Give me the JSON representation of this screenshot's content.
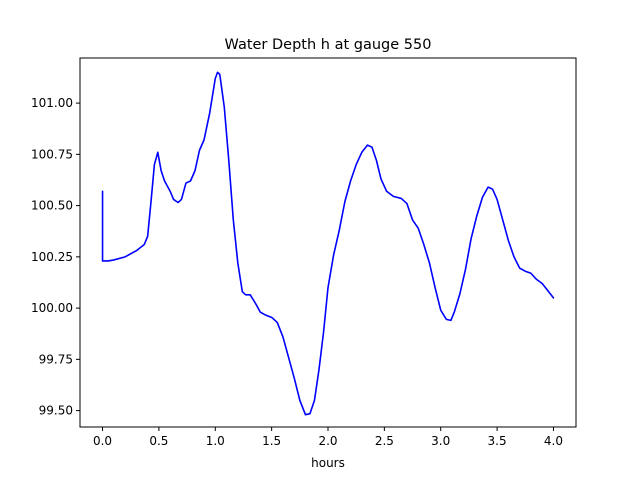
{
  "chart_data": {
    "type": "line",
    "title": "Water Depth h at gauge 550",
    "xlabel": "hours",
    "ylabel": "",
    "xlim": [
      -0.2,
      4.2
    ],
    "ylim": [
      99.42,
      101.22
    ],
    "xticks": [
      0.0,
      0.5,
      1.0,
      1.5,
      2.0,
      2.5,
      3.0,
      3.5,
      4.0
    ],
    "xtick_labels": [
      "0.0",
      "0.5",
      "1.0",
      "1.5",
      "2.0",
      "2.5",
      "3.0",
      "3.5",
      "4.0"
    ],
    "yticks": [
      99.5,
      99.75,
      100.0,
      100.25,
      100.5,
      100.75,
      101.0
    ],
    "ytick_labels": [
      "99.50",
      "99.75",
      "100.00",
      "100.25",
      "100.50",
      "100.75",
      "101.00"
    ],
    "grid": false,
    "series": [
      {
        "color": "#0000ff",
        "points": [
          [
            0.0,
            100.57
          ],
          [
            0.0,
            100.23
          ],
          [
            0.05,
            100.23
          ],
          [
            0.1,
            100.235
          ],
          [
            0.2,
            100.25
          ],
          [
            0.3,
            100.28
          ],
          [
            0.37,
            100.31
          ],
          [
            0.4,
            100.35
          ],
          [
            0.43,
            100.52
          ],
          [
            0.46,
            100.7
          ],
          [
            0.49,
            100.76
          ],
          [
            0.52,
            100.67
          ],
          [
            0.55,
            100.62
          ],
          [
            0.6,
            100.57
          ],
          [
            0.63,
            100.53
          ],
          [
            0.67,
            100.515
          ],
          [
            0.7,
            100.53
          ],
          [
            0.74,
            100.61
          ],
          [
            0.78,
            100.62
          ],
          [
            0.82,
            100.67
          ],
          [
            0.86,
            100.77
          ],
          [
            0.9,
            100.82
          ],
          [
            0.95,
            100.95
          ],
          [
            1.0,
            101.12
          ],
          [
            1.02,
            101.15
          ],
          [
            1.04,
            101.14
          ],
          [
            1.08,
            100.98
          ],
          [
            1.12,
            100.72
          ],
          [
            1.16,
            100.43
          ],
          [
            1.2,
            100.22
          ],
          [
            1.24,
            100.08
          ],
          [
            1.27,
            100.065
          ],
          [
            1.31,
            100.065
          ],
          [
            1.36,
            100.02
          ],
          [
            1.4,
            99.98
          ],
          [
            1.45,
            99.965
          ],
          [
            1.5,
            99.955
          ],
          [
            1.55,
            99.93
          ],
          [
            1.6,
            99.86
          ],
          [
            1.65,
            99.76
          ],
          [
            1.7,
            99.66
          ],
          [
            1.75,
            99.55
          ],
          [
            1.8,
            99.48
          ],
          [
            1.84,
            99.485
          ],
          [
            1.88,
            99.55
          ],
          [
            1.92,
            99.7
          ],
          [
            1.96,
            99.88
          ],
          [
            2.0,
            100.1
          ],
          [
            2.05,
            100.26
          ],
          [
            2.1,
            100.38
          ],
          [
            2.15,
            100.52
          ],
          [
            2.2,
            100.62
          ],
          [
            2.25,
            100.7
          ],
          [
            2.3,
            100.76
          ],
          [
            2.35,
            100.795
          ],
          [
            2.39,
            100.785
          ],
          [
            2.43,
            100.72
          ],
          [
            2.47,
            100.63
          ],
          [
            2.52,
            100.57
          ],
          [
            2.58,
            100.545
          ],
          [
            2.65,
            100.535
          ],
          [
            2.7,
            100.51
          ],
          [
            2.75,
            100.43
          ],
          [
            2.8,
            100.39
          ],
          [
            2.85,
            100.31
          ],
          [
            2.9,
            100.22
          ],
          [
            2.95,
            100.1
          ],
          [
            3.0,
            99.99
          ],
          [
            3.05,
            99.945
          ],
          [
            3.09,
            99.94
          ],
          [
            3.12,
            99.98
          ],
          [
            3.17,
            100.07
          ],
          [
            3.22,
            100.19
          ],
          [
            3.27,
            100.34
          ],
          [
            3.32,
            100.45
          ],
          [
            3.37,
            100.54
          ],
          [
            3.42,
            100.59
          ],
          [
            3.46,
            100.58
          ],
          [
            3.5,
            100.53
          ],
          [
            3.55,
            100.43
          ],
          [
            3.6,
            100.33
          ],
          [
            3.65,
            100.25
          ],
          [
            3.7,
            100.195
          ],
          [
            3.75,
            100.18
          ],
          [
            3.8,
            100.17
          ],
          [
            3.85,
            100.14
          ],
          [
            3.9,
            100.12
          ],
          [
            3.95,
            100.085
          ],
          [
            4.0,
            100.05
          ]
        ]
      }
    ]
  }
}
